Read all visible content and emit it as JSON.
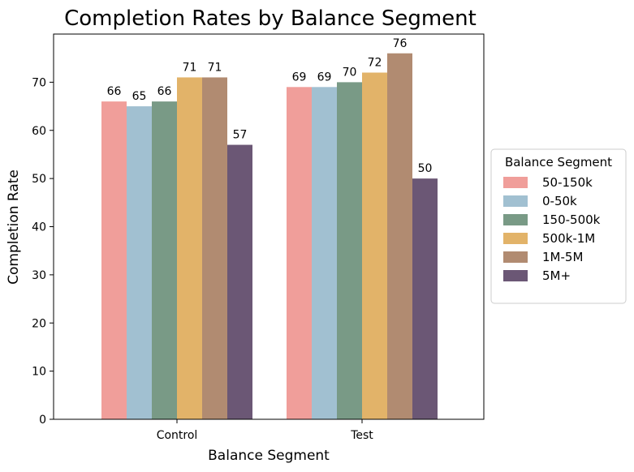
{
  "chart_data": {
    "type": "bar",
    "title": "Completion Rates by Balance Segment",
    "xlabel": "Balance Segment",
    "ylabel": "Completion Rate",
    "categories": [
      "Control",
      "Test"
    ],
    "series": [
      {
        "name": "50-150k",
        "values": [
          66,
          69
        ],
        "color": "#f09e9a"
      },
      {
        "name": "0-50k",
        "values": [
          65,
          69
        ],
        "color": "#a1c0d1"
      },
      {
        "name": "150-500k",
        "values": [
          66,
          70
        ],
        "color": "#799a86"
      },
      {
        "name": "500k-1M",
        "values": [
          71,
          72
        ],
        "color": "#e2b369"
      },
      {
        "name": "1M-5M",
        "values": [
          71,
          76
        ],
        "color": "#b18b71"
      },
      {
        "name": "5M+",
        "values": [
          57,
          50
        ],
        "color": "#6b5775"
      }
    ],
    "ylim": [
      0,
      80
    ],
    "yticks": [
      0,
      10,
      20,
      30,
      40,
      50,
      60,
      70
    ],
    "grid": false,
    "legend": {
      "title": "Balance Segment",
      "placement": "right"
    },
    "bar_labels": true
  }
}
